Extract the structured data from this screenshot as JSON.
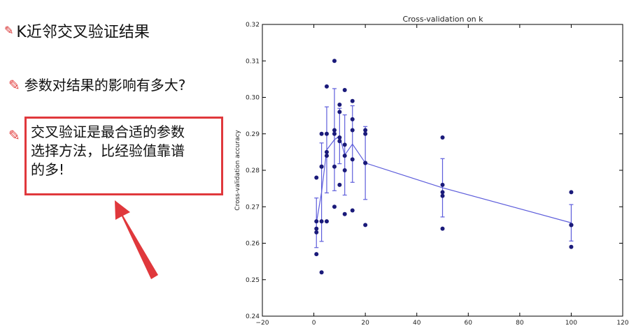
{
  "slide": {
    "heading": "K近邻交叉验证结果",
    "bullet1": "参数对结果的影响有多大?",
    "bullet2_lines": [
      "交叉验证是最合适的参数",
      "选择方法，比经验值靠谱",
      "的多!"
    ],
    "icons": {
      "heading": "small-pencil-icon",
      "bullet": "pencil-icon",
      "annotation": "red-arrow-icon"
    },
    "accent_color": "#e0383c"
  },
  "chart_data": {
    "type": "scatter",
    "title": "Cross-validation on k",
    "xlabel": "",
    "ylabel": "Cross-validation accuracy",
    "xlim": [
      -20,
      120
    ],
    "ylim": [
      0.24,
      0.32
    ],
    "xticks": [
      -20,
      0,
      20,
      40,
      60,
      80,
      100,
      120
    ],
    "yticks": [
      0.24,
      0.25,
      0.26,
      0.27,
      0.28,
      0.29,
      0.3,
      0.31,
      0.32
    ],
    "grid": false,
    "point_color": "#1a1a7a",
    "line_color": "#5d5ddb",
    "points": [
      {
        "k": 1,
        "values": [
          0.257,
          0.263,
          0.264,
          0.266,
          0.278
        ]
      },
      {
        "k": 3,
        "values": [
          0.252,
          0.266,
          0.281,
          0.29,
          0.281
        ]
      },
      {
        "k": 5,
        "values": [
          0.266,
          0.284,
          0.285,
          0.29,
          0.303
        ]
      },
      {
        "k": 8,
        "values": [
          0.27,
          0.281,
          0.29,
          0.291,
          0.31
        ]
      },
      {
        "k": 10,
        "values": [
          0.276,
          0.288,
          0.289,
          0.296,
          0.298
        ]
      },
      {
        "k": 12,
        "values": [
          0.268,
          0.28,
          0.284,
          0.287,
          0.302
        ]
      },
      {
        "k": 15,
        "values": [
          0.269,
          0.283,
          0.291,
          0.294,
          0.299
        ]
      },
      {
        "k": 20,
        "values": [
          0.265,
          0.282,
          0.29,
          0.291,
          0.282
        ]
      },
      {
        "k": 50,
        "values": [
          0.264,
          0.273,
          0.274,
          0.276,
          0.289
        ]
      },
      {
        "k": 100,
        "values": [
          0.259,
          0.265,
          0.265,
          0.265,
          0.274
        ]
      }
    ],
    "mean_line": [
      {
        "k": 1,
        "mean": 0.2656,
        "err": 0.0068
      },
      {
        "k": 3,
        "mean": 0.274,
        "err": 0.0135
      },
      {
        "k": 5,
        "mean": 0.2856,
        "err": 0.0118
      },
      {
        "k": 8,
        "mean": 0.2884,
        "err": 0.014
      },
      {
        "k": 10,
        "mean": 0.2894,
        "err": 0.0076
      },
      {
        "k": 12,
        "mean": 0.2842,
        "err": 0.011
      },
      {
        "k": 15,
        "mean": 0.2872,
        "err": 0.0105
      },
      {
        "k": 20,
        "mean": 0.282,
        "err": 0.01
      },
      {
        "k": 50,
        "mean": 0.2752,
        "err": 0.008
      },
      {
        "k": 100,
        "mean": 0.2656,
        "err": 0.005
      }
    ]
  }
}
